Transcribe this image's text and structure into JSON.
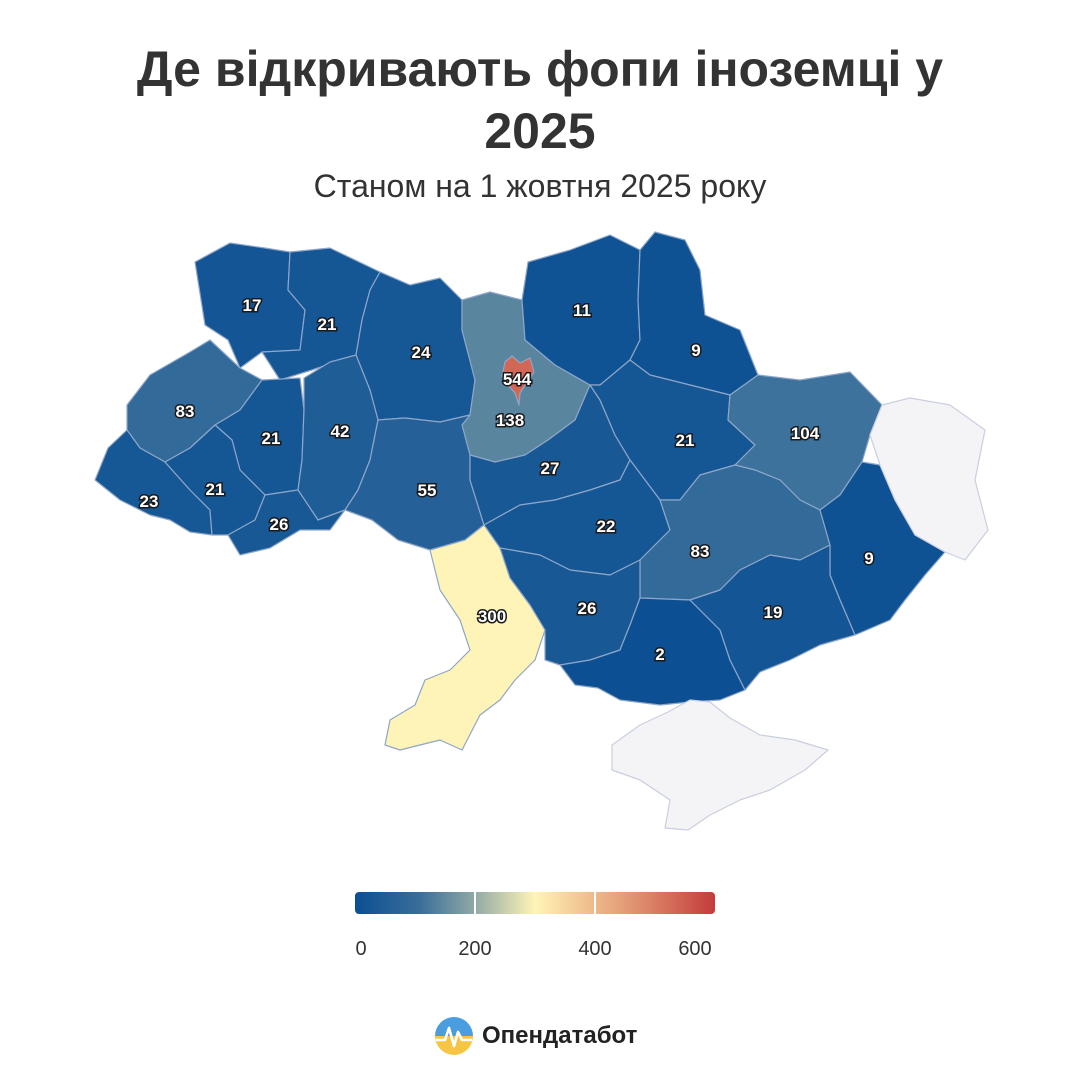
{
  "title": "Де відкривають фопи іноземці у 2025",
  "subtitle": "Станом на 1 жовтня 2025 року",
  "legend": {
    "min": 0,
    "max": 600,
    "ticks": [
      "0",
      "200",
      "400",
      "600"
    ]
  },
  "colors": {
    "low": "#0b4f93",
    "mid": "#fff4b8",
    "high": "#c43b3b",
    "nodata": "#f4f4f6"
  },
  "brand": {
    "name": "Опендатабот",
    "logo": "brand-logo-icon"
  },
  "map_data": {
    "regions": [
      {
        "id": "volyn",
        "value": 17
      },
      {
        "id": "rivne",
        "value": 21
      },
      {
        "id": "zhytomyr",
        "value": 24
      },
      {
        "id": "kyiv-oblast",
        "value": 138
      },
      {
        "id": "kyiv-city",
        "value": 544
      },
      {
        "id": "chernihiv",
        "value": 11
      },
      {
        "id": "sumy",
        "value": 9
      },
      {
        "id": "lviv",
        "value": 83
      },
      {
        "id": "ternopil",
        "value": 21
      },
      {
        "id": "khmelnytskyi",
        "value": 42
      },
      {
        "id": "vinnytsia",
        "value": 55
      },
      {
        "id": "cherkasy",
        "value": 27
      },
      {
        "id": "poltava",
        "value": 21
      },
      {
        "id": "kharkiv",
        "value": 104
      },
      {
        "id": "zakarpattia",
        "value": 23
      },
      {
        "id": "ivano-frankivsk",
        "value": 21
      },
      {
        "id": "chernivtsi",
        "value": 26
      },
      {
        "id": "kirovohrad",
        "value": 22
      },
      {
        "id": "dnipropetrovsk",
        "value": 83
      },
      {
        "id": "donetsk",
        "value": 9
      },
      {
        "id": "odesa",
        "value": 300
      },
      {
        "id": "mykolaiv",
        "value": 26
      },
      {
        "id": "kherson",
        "value": 2
      },
      {
        "id": "zaporizhzhia",
        "value": 19
      },
      {
        "id": "luhansk",
        "value": null
      },
      {
        "id": "crimea",
        "value": null
      }
    ]
  }
}
